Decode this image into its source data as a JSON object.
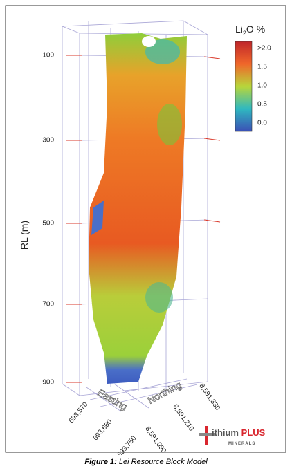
{
  "figure": {
    "rl_axis": {
      "label": "RL (m)",
      "ticks": [
        "-100",
        "-300",
        "-500",
        "-700",
        "-900"
      ]
    },
    "easting_axis": {
      "label": "Easting",
      "ticks": [
        "693,570",
        "693,660",
        "693,750"
      ]
    },
    "northing_axis": {
      "label": "Northing",
      "ticks": [
        "8,591,090",
        "8,591,210",
        "8,591,330"
      ]
    },
    "legend": {
      "title_parts": [
        "Li",
        "2",
        "O %"
      ],
      "labels": [
        ">2.0",
        "1.5",
        "1.0",
        "0.5",
        "0.0"
      ]
    },
    "logo": {
      "brand_a": "ithium",
      "brand_b": "PLUS",
      "sub": "MINERALS"
    }
  },
  "caption": {
    "label": "Figure 1:",
    "text": "Lei Resource Block Model"
  }
}
